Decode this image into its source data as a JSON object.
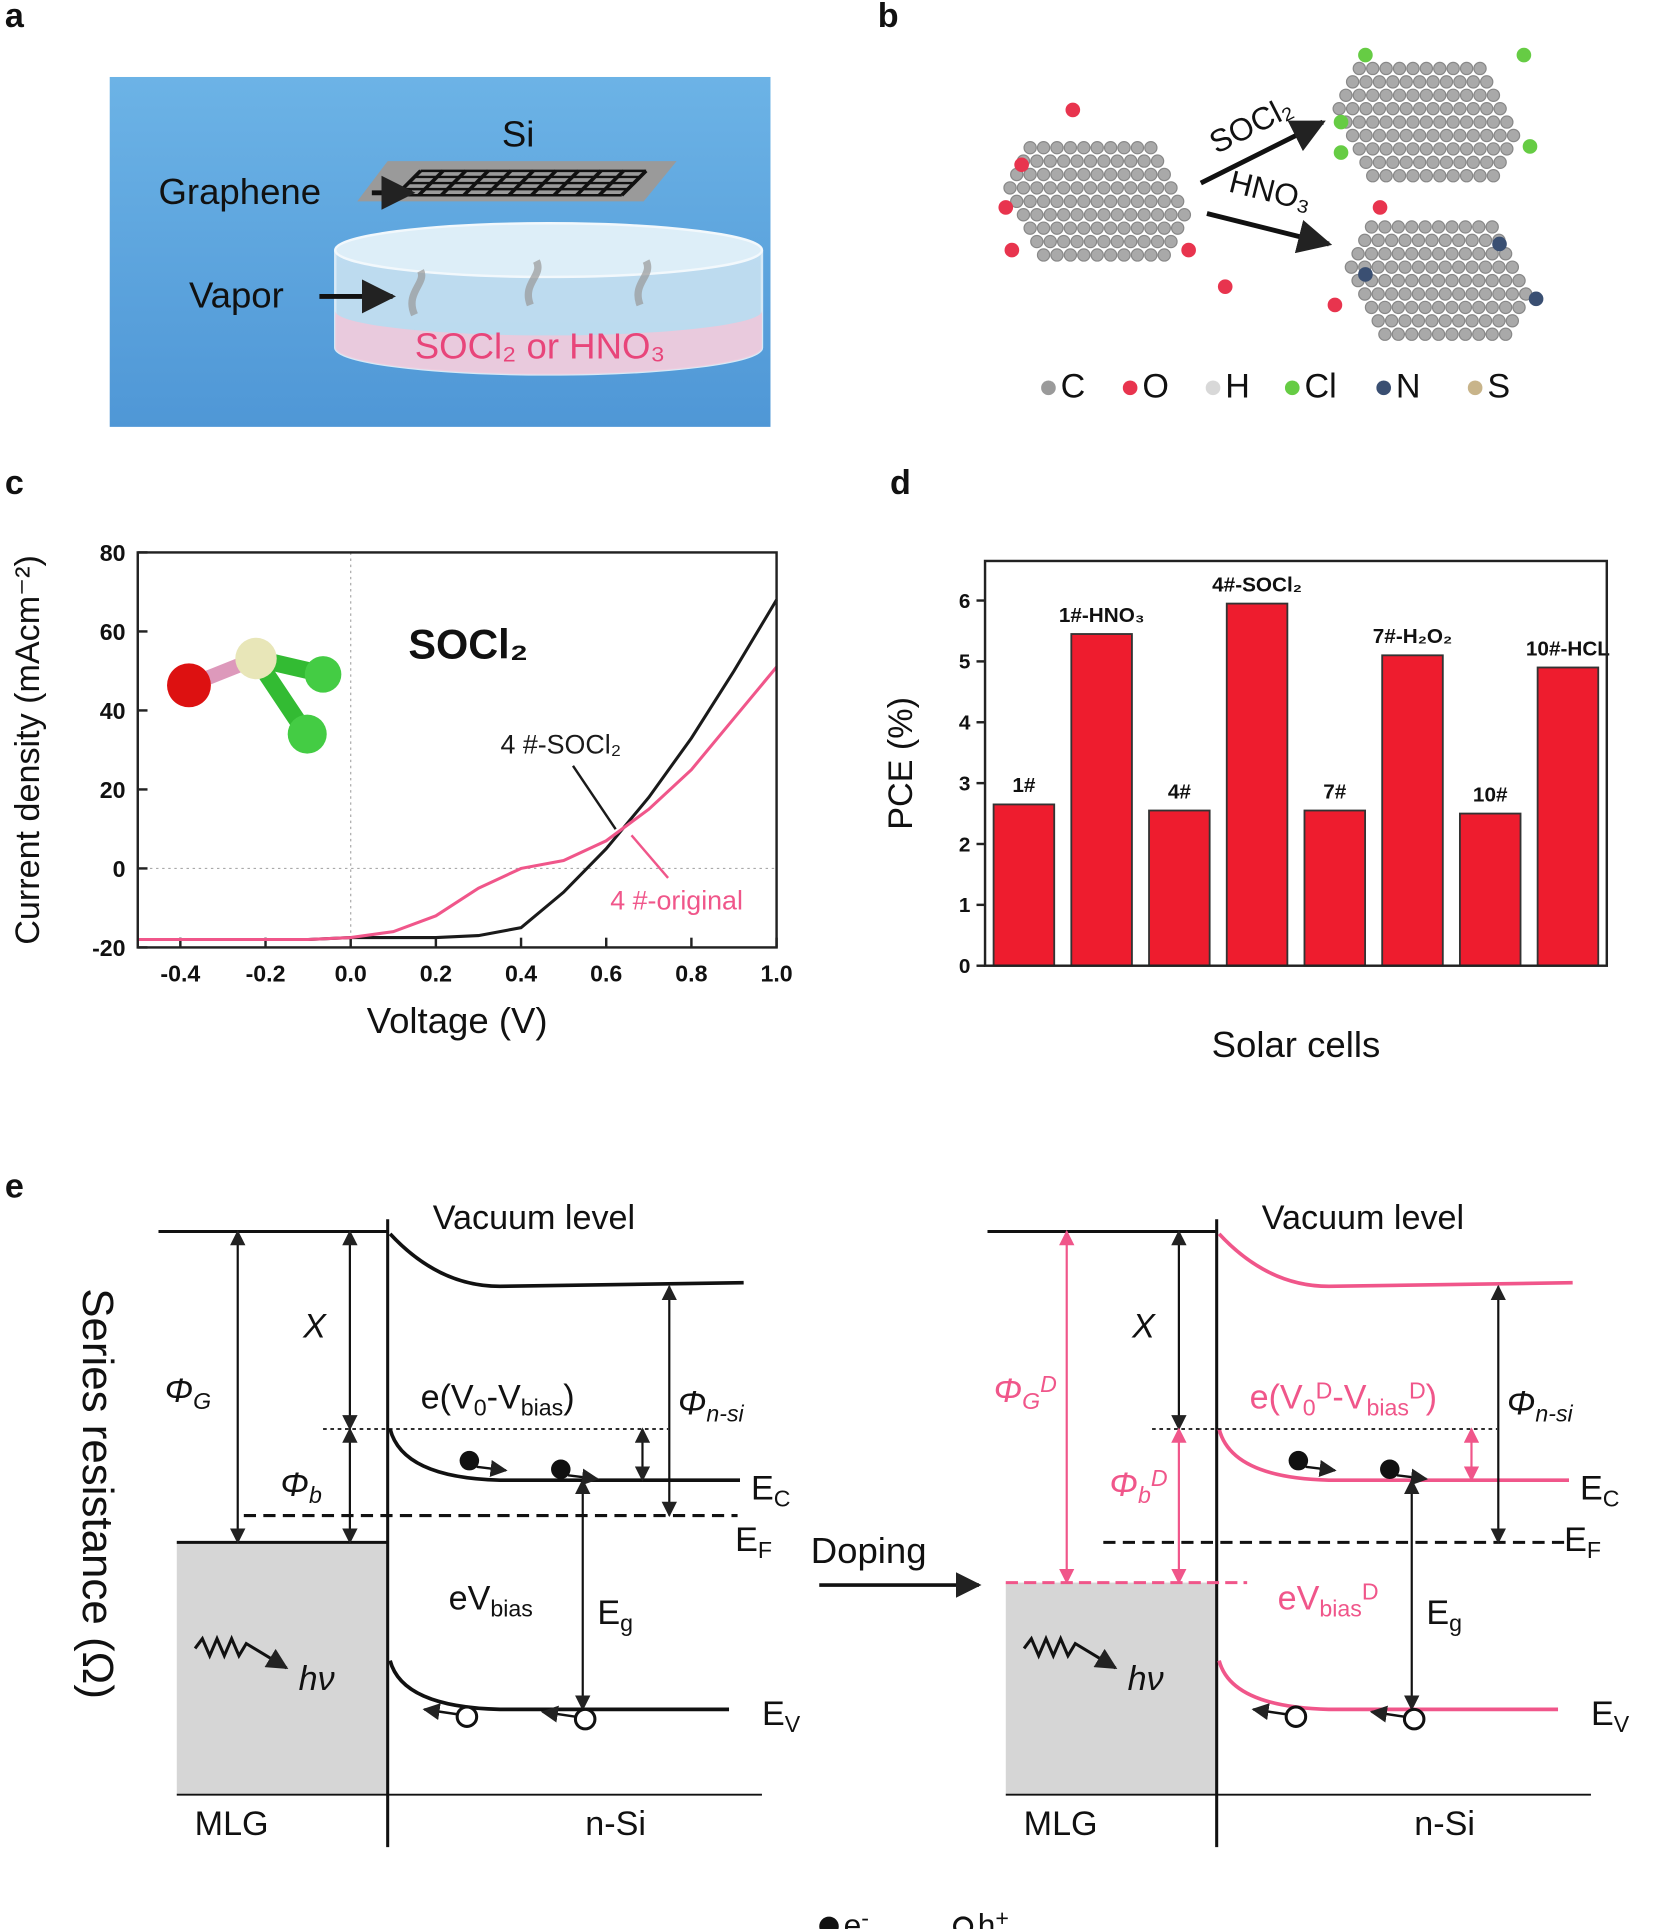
{
  "panel_labels": [
    "a",
    "b",
    "c",
    "d",
    "e"
  ],
  "panel_a": {
    "si": "Si",
    "graphene": "Graphene",
    "vapor": "Vapor",
    "liquid": "SOCl₂ or HNO₃"
  },
  "panel_b": {
    "arrow_top": "SOCl₂",
    "arrow_bottom": "HNO₃",
    "atoms": [
      {
        "label": "C",
        "color": "#9a9a9a"
      },
      {
        "label": "O",
        "color": "#e8344e"
      },
      {
        "label": "H",
        "color": "#d8d8d8"
      },
      {
        "label": "Cl",
        "color": "#66cc44"
      },
      {
        "label": "N",
        "color": "#3a4f72"
      },
      {
        "label": "S",
        "color": "#c8b48a"
      }
    ]
  },
  "chart_data": [
    {
      "type": "line",
      "annotation": "SOCl₂",
      "xlabel": "Voltage (V)",
      "ylabel": "Current density (mAcm⁻²)",
      "x": [
        -0.5,
        -0.4,
        -0.3,
        -0.2,
        -0.1,
        0.0,
        0.1,
        0.2,
        0.3,
        0.4,
        0.5,
        0.6,
        0.7,
        0.8,
        0.9,
        1.0
      ],
      "series": [
        {
          "name": "4 #-SOCl₂",
          "color": "#1a1a1a",
          "values": [
            -18,
            -18,
            -18,
            -18,
            -18,
            -17.5,
            -17.5,
            -17.5,
            -17,
            -15,
            -6,
            5,
            18,
            33,
            50,
            68
          ]
        },
        {
          "name": "4 #-original",
          "color": "#f0568a",
          "values": [
            -18,
            -18,
            -18,
            -18,
            -18,
            -17.5,
            -16,
            -12,
            -5,
            0,
            2,
            7,
            15,
            25,
            38,
            51
          ]
        }
      ],
      "xlim": [
        -0.5,
        1.0
      ],
      "xticks": [
        -0.4,
        -0.2,
        {
          "value": 0,
          "label": "0.0"
        },
        0.2,
        0.4,
        0.6,
        0.8,
        {
          "value": 1,
          "label": "1.0"
        }
      ],
      "ylim": [
        -20,
        80
      ],
      "yticks": [
        -20,
        0,
        20,
        40,
        60,
        80
      ]
    },
    {
      "type": "bar",
      "xlabel": "Solar cells",
      "ylabel": "PCE (%)",
      "color": "#ee1c2e",
      "categories": [
        "1#",
        "1#-HNO₃",
        "4#",
        "4#-SOCl₂",
        "7#",
        "7#-H₂O₂",
        "10#",
        "10#-HCL"
      ],
      "values": [
        2.65,
        5.45,
        2.55,
        5.95,
        2.55,
        5.1,
        2.5,
        4.9
      ],
      "ylim": [
        0,
        6.65
      ],
      "yticks": [
        0,
        1,
        2,
        3,
        4,
        5,
        6
      ]
    }
  ],
  "panel_e": {
    "ylabel": "Series resistance (Ω)",
    "doping": "Doping",
    "left": {
      "vacuum": [
        {
          "t": "Vacuum level"
        }
      ],
      "chi": [
        {
          "t": "X"
        }
      ],
      "phi_g": [
        {
          "t": "Φ"
        },
        {
          "sub": "G"
        }
      ],
      "e_v0": [
        {
          "t": "e(V"
        },
        {
          "sub": "0"
        },
        {
          "t": "-V"
        },
        {
          "sub": "bias"
        },
        {
          "t": ")"
        }
      ],
      "phi_nsi": [
        {
          "t": "Φ"
        },
        {
          "sub": "n-si"
        }
      ],
      "phi_b": [
        {
          "t": "Φ"
        },
        {
          "sub": "b"
        }
      ],
      "ec": [
        {
          "t": "E"
        },
        {
          "sub": "C"
        }
      ],
      "ef": [
        {
          "t": "E"
        },
        {
          "sub": "F"
        }
      ],
      "evbias": [
        {
          "t": "eV"
        },
        {
          "sub": "bias"
        }
      ],
      "eg": [
        {
          "t": "E"
        },
        {
          "sub": "g"
        }
      ],
      "hv": [
        {
          "t": "hν"
        }
      ],
      "ev": [
        {
          "t": "E"
        },
        {
          "sub": "V"
        }
      ],
      "mlg": [
        {
          "t": "MLG"
        }
      ],
      "nsi": [
        {
          "t": "n-Si"
        }
      ]
    },
    "right": {
      "vacuum": [
        {
          "t": "Vacuum level"
        }
      ],
      "chi": [
        {
          "t": "X"
        }
      ],
      "phi_g": [
        {
          "t": "Φ"
        },
        {
          "sub": "G"
        },
        {
          "sup": "D"
        }
      ],
      "e_v0": [
        {
          "t": "e(V"
        },
        {
          "sub": "0"
        },
        {
          "sup": "D"
        },
        {
          "t": "-V"
        },
        {
          "sub": "bias"
        },
        {
          "sup": "D"
        },
        {
          "t": ")"
        }
      ],
      "phi_nsi": [
        {
          "t": "Φ"
        },
        {
          "sub": "n-si"
        }
      ],
      "phi_b": [
        {
          "t": "Φ"
        },
        {
          "sub": "b"
        },
        {
          "sup": "D"
        }
      ],
      "ec": [
        {
          "t": "E"
        },
        {
          "sub": "C"
        }
      ],
      "ef": [
        {
          "t": "E"
        },
        {
          "sub": "F"
        }
      ],
      "evbias": [
        {
          "t": "eV"
        },
        {
          "sub": "bias"
        },
        {
          "sup": "D"
        }
      ],
      "eg": [
        {
          "t": "E"
        },
        {
          "sub": "g"
        }
      ],
      "hv": [
        {
          "t": "hν"
        }
      ],
      "ev": [
        {
          "t": "E"
        },
        {
          "sub": "V"
        }
      ],
      "mlg": [
        {
          "t": "MLG"
        }
      ],
      "nsi": [
        {
          "t": "n-Si"
        }
      ]
    },
    "legend": [
      [
        {
          "t": "e"
        },
        {
          "sup": "-"
        }
      ],
      [
        {
          "t": "h"
        },
        {
          "sup": "+"
        }
      ]
    ]
  }
}
